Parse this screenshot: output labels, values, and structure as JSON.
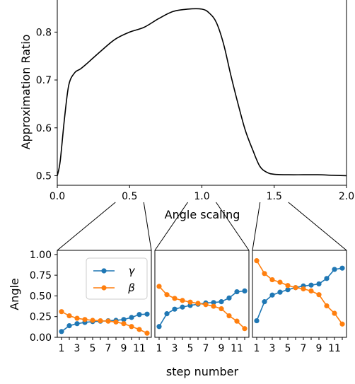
{
  "chart_data": [
    {
      "type": "line",
      "xlabel": "Angle scaling",
      "ylabel": "Approximation Ratio",
      "xlim": [
        0.0,
        2.0
      ],
      "ylim": [
        0.48,
        0.87
      ],
      "xticks": [
        "0.0",
        "0.5",
        "1.0",
        "1.5",
        "2.0"
      ],
      "yticks": [
        "0.5",
        "0.6",
        "0.7",
        "0.8"
      ],
      "grid": false,
      "series": [
        {
          "color": "#000000",
          "x": [
            0.0,
            0.02,
            0.05,
            0.08,
            0.12,
            0.16,
            0.2,
            0.3,
            0.4,
            0.5,
            0.6,
            0.7,
            0.8,
            0.9,
            1.0,
            1.05,
            1.1,
            1.15,
            1.2,
            1.25,
            1.3,
            1.35,
            1.4,
            1.45,
            1.5,
            1.6,
            1.7,
            1.8,
            1.9,
            2.0
          ],
          "values": [
            0.5,
            0.53,
            0.62,
            0.69,
            0.715,
            0.723,
            0.733,
            0.76,
            0.785,
            0.8,
            0.81,
            0.828,
            0.843,
            0.848,
            0.848,
            0.84,
            0.82,
            0.775,
            0.71,
            0.65,
            0.595,
            0.555,
            0.52,
            0.507,
            0.503,
            0.502,
            0.502,
            0.502,
            0.501,
            0.5
          ]
        }
      ]
    },
    {
      "type": "line",
      "xlabel": "step number",
      "ylabel": "Angle",
      "ylim": [
        0.0,
        1.05
      ],
      "xticks": [
        "1",
        "3",
        "5",
        "7",
        "9",
        "11"
      ],
      "yticks": [
        "0.00",
        "0.25",
        "0.50",
        "0.75",
        "1.00"
      ],
      "legend": "top-right",
      "categories": [
        1,
        2,
        3,
        4,
        5,
        6,
        7,
        8,
        9,
        10,
        11,
        12
      ],
      "series": [
        {
          "name": "γ",
          "color": "#1f77b4",
          "values": [
            0.07,
            0.14,
            0.165,
            0.18,
            0.19,
            0.195,
            0.2,
            0.205,
            0.215,
            0.24,
            0.275,
            0.28
          ]
        },
        {
          "name": "β",
          "color": "#ff7f0e",
          "values": [
            0.31,
            0.26,
            0.23,
            0.215,
            0.205,
            0.2,
            0.195,
            0.185,
            0.165,
            0.13,
            0.095,
            0.05
          ]
        }
      ]
    },
    {
      "type": "line",
      "xlabel": "",
      "ylim": [
        0.0,
        1.05
      ],
      "xticks": [
        "1",
        "3",
        "5",
        "7",
        "9",
        "11"
      ],
      "categories": [
        1,
        2,
        3,
        4,
        5,
        6,
        7,
        8,
        9,
        10,
        11,
        12
      ],
      "series": [
        {
          "color": "#1f77b4",
          "values": [
            0.13,
            0.285,
            0.34,
            0.365,
            0.385,
            0.4,
            0.415,
            0.42,
            0.43,
            0.475,
            0.55,
            0.56
          ]
        },
        {
          "color": "#ff7f0e",
          "values": [
            0.615,
            0.515,
            0.47,
            0.445,
            0.425,
            0.41,
            0.395,
            0.375,
            0.345,
            0.26,
            0.195,
            0.105
          ]
        }
      ]
    },
    {
      "type": "line",
      "xlabel": "",
      "ylim": [
        0.0,
        1.05
      ],
      "xticks": [
        "1",
        "3",
        "5",
        "7",
        "9",
        "11"
      ],
      "categories": [
        1,
        2,
        3,
        4,
        5,
        6,
        7,
        8,
        9,
        10,
        11,
        12
      ],
      "series": [
        {
          "color": "#1f77b4",
          "values": [
            0.2,
            0.43,
            0.51,
            0.545,
            0.575,
            0.6,
            0.62,
            0.63,
            0.645,
            0.71,
            0.82,
            0.835
          ]
        },
        {
          "color": "#ff7f0e",
          "values": [
            0.925,
            0.77,
            0.695,
            0.665,
            0.625,
            0.6,
            0.585,
            0.56,
            0.515,
            0.38,
            0.29,
            0.16
          ]
        }
      ]
    }
  ]
}
